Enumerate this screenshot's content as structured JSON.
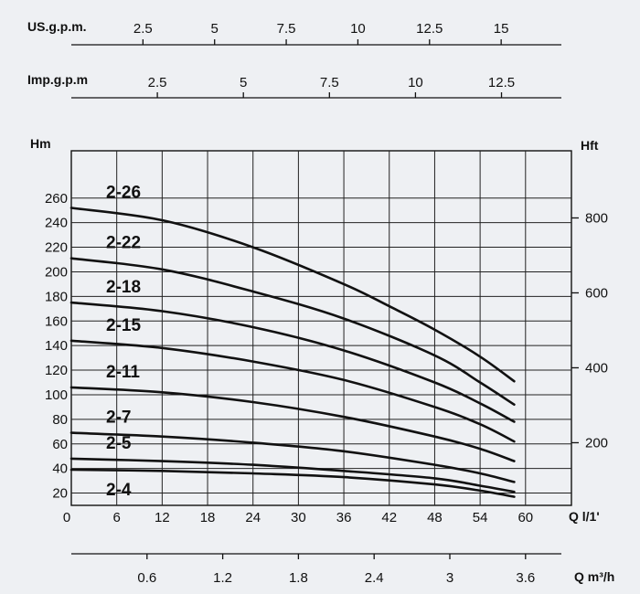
{
  "chart_data": {
    "type": "line",
    "xlabel": "Q l/1'",
    "ylabel_left": "Hm",
    "ylabel_right": "Hft",
    "x_ticks": [
      0,
      6,
      12,
      18,
      24,
      30,
      36,
      42,
      48,
      54,
      60
    ],
    "y_ticks_left": [
      20,
      40,
      60,
      80,
      100,
      120,
      140,
      160,
      180,
      200,
      220,
      240,
      260
    ],
    "y_ticks_right": [
      200,
      400,
      600,
      800
    ],
    "xlim": [
      0,
      66
    ],
    "ylim": [
      10,
      270
    ],
    "grid": true,
    "secondary_axes": [
      {
        "label": "US.g.p.m.",
        "ticks": [
          "2.5",
          "5",
          "7.5",
          "10",
          "12.5",
          "15"
        ],
        "values": [
          2.5,
          5,
          7.5,
          10,
          12.5,
          15
        ]
      },
      {
        "label": "Imp.g.p.m",
        "ticks": [
          "2.5",
          "5",
          "7.5",
          "10",
          "12.5"
        ],
        "values": [
          2.5,
          5,
          7.5,
          10,
          12.5
        ]
      },
      {
        "label": "Q m³/h",
        "ticks": [
          "0.6",
          "1.2",
          "1.8",
          "2.4",
          "3",
          "3.6"
        ],
        "values": [
          0.6,
          1.2,
          1.8,
          2.4,
          3,
          3.6
        ]
      }
    ],
    "series": [
      {
        "name": "2-26",
        "x": [
          0,
          12,
          24,
          36,
          42,
          48,
          54,
          58.5
        ],
        "y": [
          252,
          242,
          220,
          190,
          172,
          153,
          131,
          111
        ]
      },
      {
        "name": "2-22",
        "x": [
          0,
          12,
          24,
          36,
          48,
          54,
          58.5
        ],
        "y": [
          211,
          202,
          184,
          162,
          132,
          110,
          92
        ]
      },
      {
        "name": "2-18",
        "x": [
          0,
          12,
          24,
          36,
          48,
          54,
          58.5
        ],
        "y": [
          175,
          168,
          155,
          136,
          110,
          93,
          78
        ]
      },
      {
        "name": "2-15",
        "x": [
          0,
          12,
          24,
          36,
          48,
          54,
          58.5
        ],
        "y": [
          144,
          138,
          127,
          112,
          90,
          76,
          62
        ]
      },
      {
        "name": "2-11",
        "x": [
          0,
          12,
          24,
          36,
          48,
          54,
          58.5
        ],
        "y": [
          106,
          102,
          94,
          82,
          66,
          56,
          46
        ]
      },
      {
        "name": "2-7",
        "x": [
          0,
          12,
          24,
          36,
          48,
          54,
          58.5
        ],
        "y": [
          69,
          66,
          61,
          54,
          43,
          36,
          29
        ]
      },
      {
        "name": "2-5",
        "x": [
          0,
          12,
          24,
          36,
          48,
          54,
          58.5
        ],
        "y": [
          48,
          46,
          43,
          38,
          32,
          26,
          21
        ]
      },
      {
        "name": "2-4",
        "x": [
          0,
          12,
          24,
          36,
          48,
          54,
          58.5
        ],
        "y": [
          39,
          38,
          36,
          33,
          27,
          22,
          17
        ]
      }
    ]
  }
}
